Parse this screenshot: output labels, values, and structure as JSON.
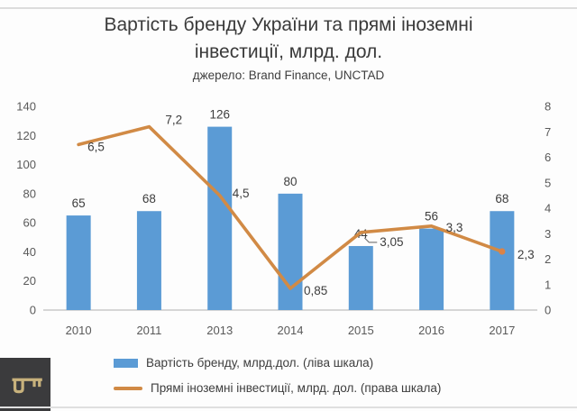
{
  "header": {
    "title_line1": "Вартість бренду України та прямі іноземні",
    "title_line2": "інвестиції, млрд. дол.",
    "source": "джерело: Brand Finance, UNCTAD"
  },
  "chart_data": {
    "type": "combo-bar-line",
    "title": "Вартість бренду України та прямі іноземні інвестиції, млрд. дол.",
    "subtitle": "джерело: Brand Finance, UNCTAD",
    "categories": [
      "2010",
      "2011",
      "2013",
      "2014",
      "2015",
      "2016",
      "2017"
    ],
    "series": [
      {
        "name": "Вартість бренду, млрд.дол. (ліва шкала)",
        "type": "bar",
        "axis": "left",
        "color": "#5B9BD5",
        "values": [
          65,
          68,
          126,
          80,
          44,
          56,
          68
        ],
        "labels": [
          "65",
          "68",
          "126",
          "80",
          "44",
          "56",
          "68"
        ]
      },
      {
        "name": "Прямі іноземні інвестиції, млрд. дол. (права шкала)",
        "type": "line",
        "axis": "right",
        "color": "#D18A45",
        "marker_color": "#DB8347",
        "values": [
          6.5,
          7.2,
          4.5,
          0.85,
          3.05,
          3.3,
          2.3
        ],
        "labels": [
          "6,5",
          "7,2",
          "4,5",
          "0,85",
          "3,05",
          "3,3",
          "2,3"
        ],
        "label_offsets": [
          [
            10,
            7
          ],
          [
            18,
            -3
          ],
          [
            14,
            2
          ],
          [
            15,
            7
          ],
          [
            21,
            15
          ],
          [
            16,
            6
          ],
          [
            17,
            8
          ]
        ],
        "callout_index": 4,
        "end_marker": true
      }
    ],
    "left_axis": {
      "min": 0,
      "max": 140,
      "step": 20,
      "ticks": [
        "0",
        "20",
        "40",
        "60",
        "80",
        "100",
        "120",
        "140"
      ]
    },
    "right_axis": {
      "min": 0,
      "max": 8,
      "step": 1,
      "ticks": [
        "0",
        "1",
        "2",
        "3",
        "4",
        "5",
        "6",
        "7",
        "8"
      ]
    },
    "grid": false,
    "legend_position": "bottom",
    "legend": [
      {
        "swatch": "bar",
        "color": "#5B9BD5",
        "label": "Вартість бренду, млрд.дол. (ліва шкала)"
      },
      {
        "swatch": "line",
        "color": "#D18A45",
        "label": "Прямі іноземні інвестиції, млрд. дол. (права шкала)"
      }
    ]
  },
  "watermark": {
    "icon": "key-icon",
    "background": "#3B3B3D",
    "icon_color": "#C7B17C"
  }
}
